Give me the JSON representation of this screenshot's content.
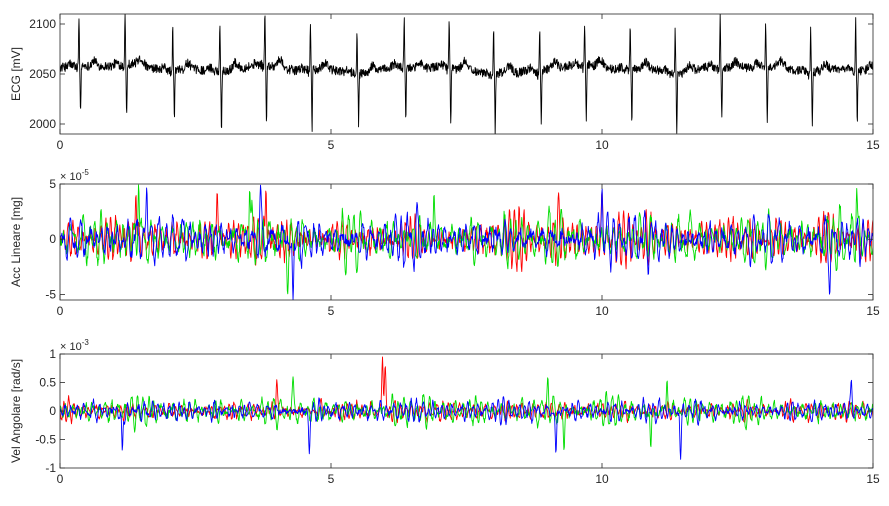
{
  "chart_data": [
    {
      "type": "line",
      "ylabel": "ECG [mV]",
      "xlim": [
        0,
        15
      ],
      "ylim": [
        1990,
        2110
      ],
      "xticks": [
        0,
        5,
        10,
        15
      ],
      "xtick_labels": [
        "0",
        "5",
        "10",
        "15"
      ],
      "yticks": [
        2000,
        2050,
        2100
      ],
      "ytick_labels": [
        "2000",
        "2050",
        "2100"
      ],
      "exponent_label": null,
      "grid": false,
      "series": [
        {
          "color": "#000000",
          "baseline": 2055,
          "noise": 4.5,
          "beat_times": [
            0.35,
            1.2,
            2.08,
            2.95,
            3.78,
            4.62,
            5.48,
            6.35,
            7.18,
            8.0,
            8.85,
            9.68,
            10.52,
            11.35,
            12.18,
            13.02,
            13.85,
            14.68
          ],
          "r_peaks": [
            2105,
            2108,
            2098,
            2102,
            2110,
            2100,
            2097,
            2104,
            2099,
            2101,
            2098,
            2097,
            2096,
            2100,
            2108,
            2098,
            2097,
            2106
          ],
          "s_troughs": [
            2008,
            2002,
            2006,
            1996,
            1996,
            1996,
            2005,
            2000,
            1997,
            1996,
            2000,
            1996,
            2000,
            1991,
            2003,
            1996,
            2001,
            2004
          ]
        }
      ]
    },
    {
      "type": "line",
      "ylabel": "Acc Lineare [mg]",
      "xlim": [
        0,
        15
      ],
      "ylim": [
        -5.5,
        5
      ],
      "xticks": [
        0,
        5,
        10,
        15
      ],
      "xtick_labels": [
        "0",
        "5",
        "10",
        "15"
      ],
      "yticks": [
        -5,
        0,
        5
      ],
      "ytick_labels": [
        "-5",
        "0",
        "5"
      ],
      "exponent_label": {
        "base": "× 10",
        "power": "-5"
      },
      "grid": false,
      "series": [
        {
          "color": "#ff0000",
          "amplitude": 2.6,
          "peak_times": [
            1.4,
            2.9,
            3.8,
            9.2,
            10.0
          ],
          "peak_values": [
            4.2,
            4.4,
            4.6,
            4.2,
            4.3
          ]
        },
        {
          "color": "#00dd00",
          "amplitude": 2.8,
          "peak_times": [
            1.45,
            3.5,
            4.2,
            6.9,
            14.7
          ],
          "peak_values": [
            5.0,
            4.6,
            -5.0,
            4.2,
            4.6
          ]
        },
        {
          "color": "#0000ff",
          "amplitude": 2.6,
          "peak_times": [
            1.6,
            3.7,
            4.3,
            10.0,
            14.2
          ],
          "peak_values": [
            4.7,
            4.9,
            -5.5,
            4.7,
            -5.1
          ]
        }
      ]
    },
    {
      "type": "line",
      "ylabel": "Vel Angolare [rad/s]",
      "xlim": [
        0,
        15
      ],
      "ylim": [
        -1,
        1
      ],
      "xticks": [
        0,
        5,
        10,
        15
      ],
      "xtick_labels": [
        "0",
        "5",
        "10",
        "15"
      ],
      "yticks": [
        -1,
        -0.5,
        0,
        0.5,
        1
      ],
      "ytick_labels": [
        "-1",
        "-0.5",
        "0",
        "0.5",
        "1"
      ],
      "exponent_label": {
        "base": "× 10",
        "power": "-3"
      },
      "grid": false,
      "series": [
        {
          "color": "#ff0000",
          "amplitude": 0.22,
          "peak_times": [
            5.95,
            6.0,
            4.0
          ],
          "peak_values": [
            0.95,
            0.8,
            0.55
          ]
        },
        {
          "color": "#00dd00",
          "amplitude": 0.28,
          "peak_times": [
            9.3,
            9.0,
            10.9,
            11.2,
            4.3
          ],
          "peak_values": [
            -0.7,
            0.6,
            -0.65,
            0.55,
            0.6
          ]
        },
        {
          "color": "#0000ff",
          "amplitude": 0.24,
          "peak_times": [
            1.15,
            4.6,
            9.15,
            11.45,
            14.6
          ],
          "peak_values": [
            -0.7,
            -0.75,
            -0.75,
            -0.85,
            0.55
          ]
        }
      ]
    }
  ]
}
